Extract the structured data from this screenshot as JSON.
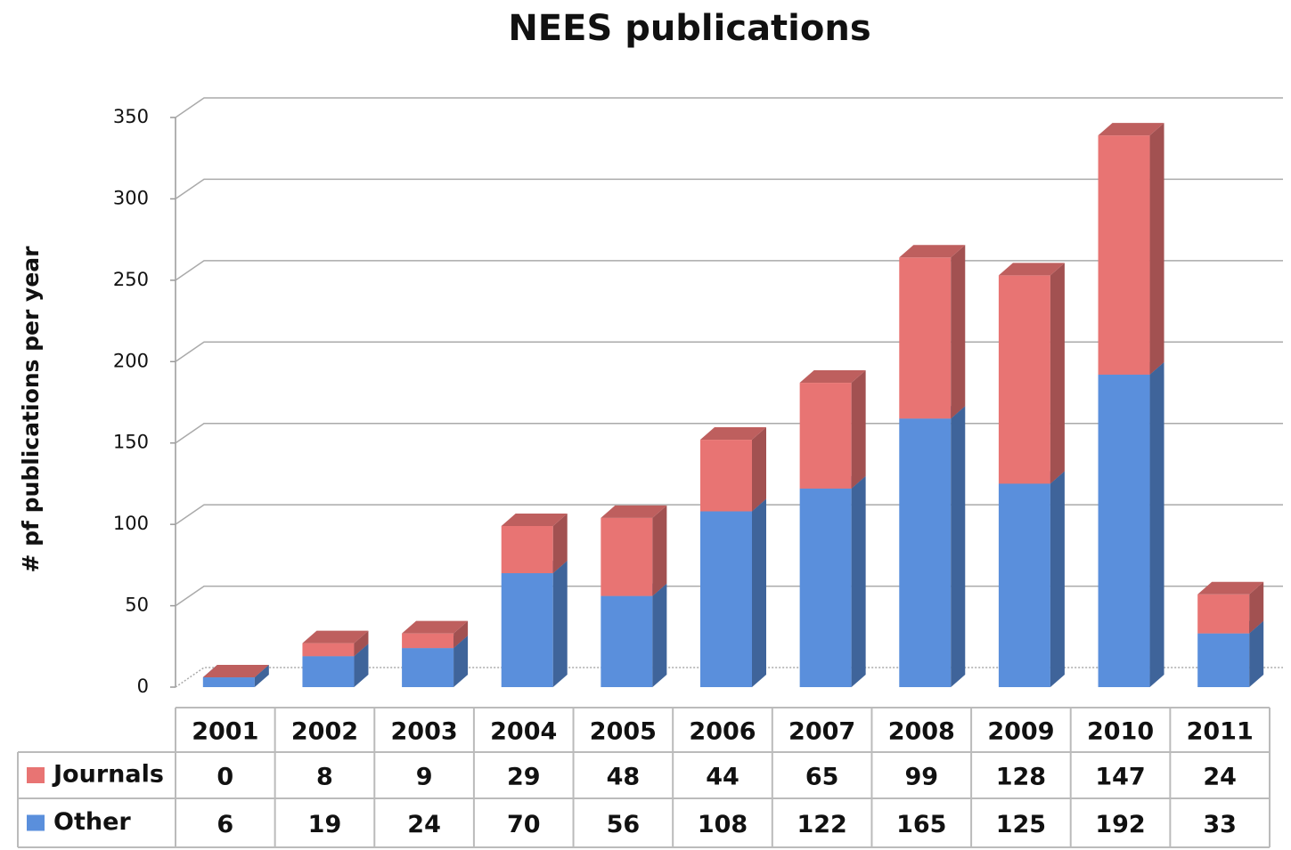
{
  "chart_data": {
    "type": "bar",
    "stacked": true,
    "title": "NEES publications",
    "y_label": "# pf publications per year",
    "categories": [
      "2001",
      "2002",
      "2003",
      "2004",
      "2005",
      "2006",
      "2007",
      "2008",
      "2009",
      "2010",
      "2011"
    ],
    "series": [
      {
        "name": "Journals",
        "color": "#e87473",
        "values": [
          0,
          8,
          9,
          29,
          48,
          44,
          65,
          99,
          128,
          147,
          24
        ]
      },
      {
        "name": "Other",
        "color": "#5a8fdc",
        "values": [
          6,
          19,
          24,
          70,
          56,
          108,
          122,
          165,
          125,
          192,
          33
        ]
      }
    ],
    "ylim": [
      0,
      350
    ],
    "yticks": [
      0,
      50,
      100,
      150,
      200,
      250,
      300,
      350
    ],
    "grid": true
  }
}
